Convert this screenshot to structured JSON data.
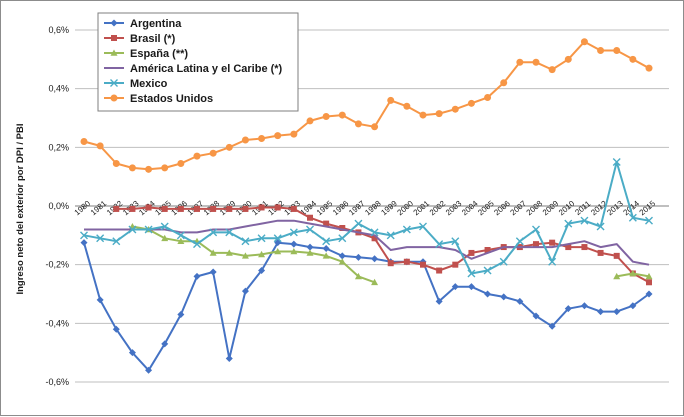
{
  "chart_data": {
    "type": "line",
    "title": "",
    "xlabel": "",
    "ylabel": "Ingreso neto del exterior por DPI / PBI",
    "ylim": [
      -0.006,
      0.006
    ],
    "yticks": [
      0.006,
      0.004,
      0.002,
      0.0,
      -0.002,
      -0.004,
      -0.006
    ],
    "ytick_labels": [
      "0,6%",
      "0,4%",
      "0,2%",
      "0,0%",
      "-0,2%",
      "-0,4%",
      "-0,6%"
    ],
    "x": [
      1980,
      1981,
      1982,
      1983,
      1984,
      1985,
      1986,
      1987,
      1988,
      1989,
      1990,
      1991,
      1992,
      1993,
      1994,
      1995,
      1996,
      1997,
      1998,
      1999,
      2000,
      2001,
      2002,
      2003,
      2004,
      2005,
      2006,
      2007,
      2008,
      2009,
      2010,
      2011,
      2012,
      2013,
      2014,
      2015
    ],
    "x_tick_labels": [
      "1980",
      "1981",
      "1982",
      "1983",
      "1984",
      "1985",
      "1986",
      "1987",
      "1988",
      "1989",
      "1990",
      "1991",
      "1992",
      "1993",
      "1994",
      "1995",
      "1996",
      "1997",
      "1998",
      "1999",
      "2000",
      "2001",
      "2002",
      "2003",
      "2004",
      "2005",
      "2006",
      "2007",
      "2008",
      "2009",
      "2010",
      "2011",
      "2012",
      "2013",
      "2014",
      "2015"
    ],
    "legend_position": "top-left",
    "grid": "horizontal",
    "series": [
      {
        "name": "Argentina",
        "color": "#4472C4",
        "marker": "diamond",
        "values": [
          -0.00125,
          -0.0032,
          -0.0042,
          -0.005,
          -0.0056,
          -0.0047,
          -0.0037,
          -0.0024,
          -0.00225,
          -0.0052,
          -0.0029,
          -0.0022,
          -0.00125,
          -0.0013,
          -0.0014,
          -0.00145,
          -0.0017,
          -0.00175,
          -0.0018,
          -0.0019,
          -0.0019,
          -0.0019,
          -0.00325,
          -0.00275,
          -0.00275,
          -0.003,
          -0.0031,
          -0.00325,
          -0.00375,
          -0.0041,
          -0.0035,
          -0.0034,
          -0.0036,
          -0.0036,
          -0.0034,
          -0.003
        ]
      },
      {
        "name": "Brasil (*)",
        "color": "#C0504D",
        "marker": "square",
        "values": [
          null,
          null,
          -0.0001,
          -0.0001,
          -5e-05,
          -0.0001,
          -0.0001,
          -0.0001,
          -0.0001,
          -0.0001,
          -0.0001,
          -5e-05,
          -5e-05,
          -0.0001,
          -0.0004,
          -0.0006,
          -0.00075,
          -0.0009,
          -0.0011,
          -0.00195,
          -0.0019,
          -0.002,
          -0.0022,
          -0.002,
          -0.0016,
          -0.0015,
          -0.0014,
          -0.0014,
          -0.0013,
          -0.00125,
          -0.0014,
          -0.0014,
          -0.0016,
          -0.0017,
          -0.0023,
          -0.0026
        ]
      },
      {
        "name": "España (**)",
        "color": "#9BBB59",
        "marker": "triangle",
        "values": [
          null,
          null,
          null,
          -0.0007,
          -0.0008,
          -0.0011,
          -0.0012,
          -0.0012,
          -0.0016,
          -0.0016,
          -0.0017,
          -0.00165,
          -0.00155,
          -0.00155,
          -0.0016,
          -0.0017,
          -0.0019,
          -0.0024,
          -0.0026,
          null,
          null,
          null,
          null,
          null,
          null,
          null,
          null,
          null,
          null,
          null,
          null,
          null,
          null,
          -0.0024,
          -0.0023,
          -0.0024
        ]
      },
      {
        "name": "América Latina y el Caribe (*)",
        "color": "#8064A2",
        "marker": "none",
        "values": [
          -0.0008,
          -0.0008,
          -0.0008,
          -0.0008,
          -0.0008,
          -0.0008,
          -0.0009,
          -0.0009,
          -0.0008,
          -0.0008,
          -0.0007,
          -0.0006,
          -0.0005,
          -0.0005,
          -0.0006,
          -0.0007,
          -0.0008,
          -0.0009,
          -0.001,
          -0.0015,
          -0.0014,
          -0.0014,
          -0.0014,
          -0.0015,
          -0.0018,
          -0.0016,
          -0.0014,
          -0.0014,
          -0.0014,
          -0.0014,
          -0.0013,
          -0.0012,
          -0.0014,
          -0.0013,
          -0.0019,
          -0.002
        ]
      },
      {
        "name": "Mexico",
        "color": "#4BACC6",
        "marker": "cross",
        "values": [
          -0.001,
          -0.0011,
          -0.0012,
          -0.0008,
          -0.0008,
          -0.0007,
          -0.001,
          -0.0013,
          -0.0009,
          -0.0009,
          -0.0012,
          -0.0011,
          -0.0011,
          -0.0009,
          -0.0008,
          -0.0012,
          -0.0011,
          -0.0006,
          -0.0009,
          -0.001,
          -0.0008,
          -0.0007,
          -0.0013,
          -0.0012,
          -0.0023,
          -0.0022,
          -0.0019,
          -0.0012,
          -0.0008,
          -0.0019,
          -0.0006,
          -0.0005,
          -0.0007,
          0.0015,
          -0.0004,
          -0.0005
        ]
      },
      {
        "name": "Estados Unidos",
        "color": "#F79646",
        "marker": "circle",
        "values": [
          0.0022,
          0.00205,
          0.00145,
          0.0013,
          0.00125,
          0.0013,
          0.00145,
          0.0017,
          0.0018,
          0.002,
          0.00225,
          0.0023,
          0.0024,
          0.00245,
          0.0029,
          0.00305,
          0.0031,
          0.0028,
          0.0027,
          0.0036,
          0.0034,
          0.0031,
          0.00315,
          0.0033,
          0.0035,
          0.0037,
          0.0042,
          0.0049,
          0.0049,
          0.00465,
          0.005,
          0.0056,
          0.0053,
          0.0053,
          0.005,
          0.0047
        ]
      }
    ]
  }
}
